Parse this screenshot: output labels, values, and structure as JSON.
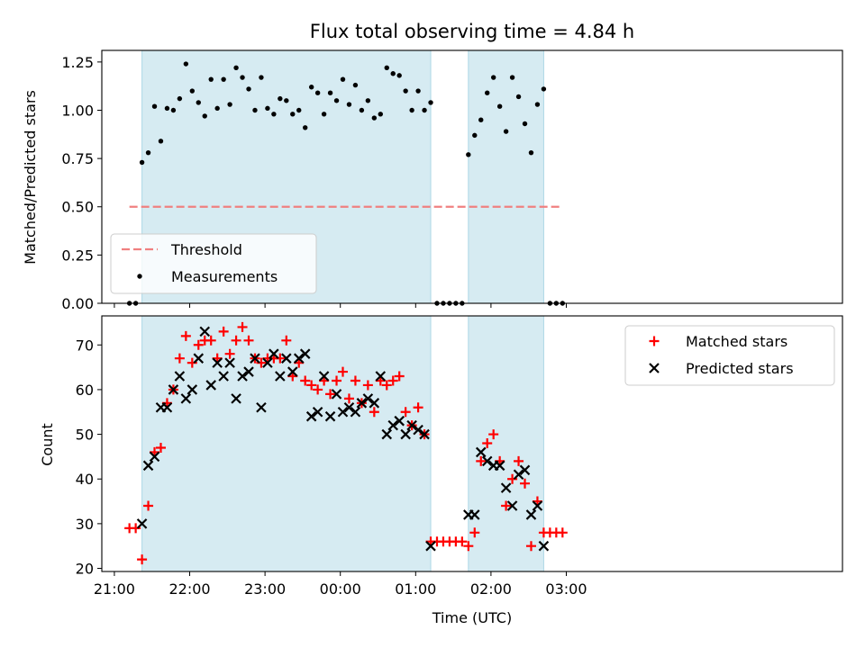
{
  "chart_data": [
    {
      "type": "scatter",
      "title": "Flux total observing time = 4.84 h",
      "xlabel": "",
      "ylabel": "Matched/Predicted stars",
      "ylim": [
        0,
        1.31
      ],
      "yticks": [
        "0.00",
        "0.25",
        "0.50",
        "0.75",
        "1.00",
        "1.25"
      ],
      "grid": false,
      "legend_position": "lower-left",
      "shaded_intervals": [
        [
          "21:22",
          "01:12"
        ],
        [
          "01:42",
          "02:42"
        ]
      ],
      "threshold": {
        "name": "Threshold",
        "value": 0.5,
        "x_range": [
          "21:12",
          "02:57"
        ],
        "color": "#f08080"
      },
      "series": [
        {
          "name": "Measurements",
          "marker": "dot",
          "color": "#000000",
          "points": [
            [
              "21:12",
              0.0
            ],
            [
              "21:17",
              0.0
            ],
            [
              "21:22",
              0.73
            ],
            [
              "21:27",
              0.78
            ],
            [
              "21:32",
              1.02
            ],
            [
              "21:37",
              0.84
            ],
            [
              "21:42",
              1.01
            ],
            [
              "21:47",
              1.0
            ],
            [
              "21:52",
              1.06
            ],
            [
              "21:57",
              1.24
            ],
            [
              "22:02",
              1.1
            ],
            [
              "22:07",
              1.04
            ],
            [
              "22:12",
              0.97
            ],
            [
              "22:17",
              1.16
            ],
            [
              "22:22",
              1.01
            ],
            [
              "22:27",
              1.16
            ],
            [
              "22:32",
              1.03
            ],
            [
              "22:37",
              1.22
            ],
            [
              "22:42",
              1.17
            ],
            [
              "22:47",
              1.11
            ],
            [
              "22:52",
              1.0
            ],
            [
              "22:57",
              1.17
            ],
            [
              "23:02",
              1.01
            ],
            [
              "23:07",
              0.98
            ],
            [
              "23:12",
              1.06
            ],
            [
              "23:17",
              1.05
            ],
            [
              "23:22",
              0.98
            ],
            [
              "23:27",
              1.0
            ],
            [
              "23:32",
              0.91
            ],
            [
              "23:37",
              1.12
            ],
            [
              "23:42",
              1.09
            ],
            [
              "23:47",
              0.98
            ],
            [
              "23:52",
              1.09
            ],
            [
              "23:57",
              1.05
            ],
            [
              "00:02",
              1.16
            ],
            [
              "00:07",
              1.03
            ],
            [
              "00:12",
              1.13
            ],
            [
              "00:17",
              1.0
            ],
            [
              "00:22",
              1.05
            ],
            [
              "00:27",
              0.96
            ],
            [
              "00:32",
              0.98
            ],
            [
              "00:37",
              1.22
            ],
            [
              "00:42",
              1.19
            ],
            [
              "00:47",
              1.18
            ],
            [
              "00:52",
              1.1
            ],
            [
              "00:57",
              1.0
            ],
            [
              "01:02",
              1.1
            ],
            [
              "01:07",
              1.0
            ],
            [
              "01:12",
              1.04
            ],
            [
              "01:17",
              0.0
            ],
            [
              "01:22",
              0.0
            ],
            [
              "01:27",
              0.0
            ],
            [
              "01:32",
              0.0
            ],
            [
              "01:37",
              0.0
            ],
            [
              "01:42",
              0.77
            ],
            [
              "01:47",
              0.87
            ],
            [
              "01:52",
              0.95
            ],
            [
              "01:57",
              1.09
            ],
            [
              "02:02",
              1.17
            ],
            [
              "02:07",
              1.02
            ],
            [
              "02:12",
              0.89
            ],
            [
              "02:17",
              1.17
            ],
            [
              "02:22",
              1.07
            ],
            [
              "02:27",
              0.93
            ],
            [
              "02:32",
              0.78
            ],
            [
              "02:37",
              1.03
            ],
            [
              "02:42",
              1.11
            ],
            [
              "02:47",
              0.0
            ],
            [
              "02:52",
              0.0
            ],
            [
              "02:57",
              0.0
            ]
          ]
        }
      ]
    },
    {
      "type": "scatter",
      "title": "",
      "xlabel": "Time (UTC)",
      "ylabel": "Count",
      "ylim": [
        19.3,
        76.5
      ],
      "yticks": [
        "20",
        "30",
        "40",
        "50",
        "60",
        "70"
      ],
      "xticks": [
        "21:00",
        "22:00",
        "23:00",
        "00:00",
        "01:00",
        "02:00",
        "03:00"
      ],
      "grid": false,
      "legend_position": "upper-right",
      "shaded_intervals": [
        [
          "21:22",
          "01:12"
        ],
        [
          "01:42",
          "02:42"
        ]
      ],
      "series": [
        {
          "name": "Matched stars",
          "marker": "plus",
          "color": "#ff0000",
          "points": [
            [
              "21:12",
              29
            ],
            [
              "21:17",
              29
            ],
            [
              "21:22",
              22
            ],
            [
              "21:27",
              34
            ],
            [
              "21:32",
              46
            ],
            [
              "21:37",
              47
            ],
            [
              "21:42",
              57
            ],
            [
              "21:47",
              60
            ],
            [
              "21:52",
              67
            ],
            [
              "21:57",
              72
            ],
            [
              "22:02",
              66
            ],
            [
              "22:07",
              70
            ],
            [
              "22:12",
              71
            ],
            [
              "22:17",
              71
            ],
            [
              "22:22",
              67
            ],
            [
              "22:27",
              73
            ],
            [
              "22:32",
              68
            ],
            [
              "22:37",
              71
            ],
            [
              "22:42",
              74
            ],
            [
              "22:47",
              71
            ],
            [
              "22:52",
              67
            ],
            [
              "22:57",
              66
            ],
            [
              "23:02",
              67
            ],
            [
              "23:07",
              67
            ],
            [
              "23:12",
              67
            ],
            [
              "23:17",
              71
            ],
            [
              "23:22",
              63
            ],
            [
              "23:27",
              66
            ],
            [
              "23:32",
              62
            ],
            [
              "23:37",
              61
            ],
            [
              "23:42",
              60
            ],
            [
              "23:47",
              62
            ],
            [
              "23:52",
              59
            ],
            [
              "23:57",
              62
            ],
            [
              "00:02",
              64
            ],
            [
              "00:07",
              58
            ],
            [
              "00:12",
              62
            ],
            [
              "00:17",
              57
            ],
            [
              "00:22",
              61
            ],
            [
              "00:27",
              55
            ],
            [
              "00:32",
              62
            ],
            [
              "00:37",
              61
            ],
            [
              "00:42",
              62
            ],
            [
              "00:47",
              63
            ],
            [
              "00:52",
              55
            ],
            [
              "00:57",
              52
            ],
            [
              "01:02",
              56
            ],
            [
              "01:07",
              50
            ],
            [
              "01:12",
              26
            ],
            [
              "01:17",
              26
            ],
            [
              "01:22",
              26
            ],
            [
              "01:27",
              26
            ],
            [
              "01:32",
              26
            ],
            [
              "01:37",
              26
            ],
            [
              "01:42",
              25
            ],
            [
              "01:47",
              28
            ],
            [
              "01:52",
              44
            ],
            [
              "01:57",
              48
            ],
            [
              "02:02",
              50
            ],
            [
              "02:07",
              44
            ],
            [
              "02:12",
              34
            ],
            [
              "02:17",
              40
            ],
            [
              "02:22",
              44
            ],
            [
              "02:27",
              39
            ],
            [
              "02:32",
              25
            ],
            [
              "02:37",
              35
            ],
            [
              "02:42",
              28
            ],
            [
              "02:47",
              28
            ],
            [
              "02:52",
              28
            ],
            [
              "02:57",
              28
            ]
          ]
        },
        {
          "name": "Predicted stars",
          "marker": "x",
          "color": "#000000",
          "points": [
            [
              "21:22",
              30
            ],
            [
              "21:27",
              43
            ],
            [
              "21:32",
              45
            ],
            [
              "21:37",
              56
            ],
            [
              "21:42",
              56
            ],
            [
              "21:47",
              60
            ],
            [
              "21:52",
              63
            ],
            [
              "21:57",
              58
            ],
            [
              "22:02",
              60
            ],
            [
              "22:07",
              67
            ],
            [
              "22:12",
              73
            ],
            [
              "22:17",
              61
            ],
            [
              "22:22",
              66
            ],
            [
              "22:27",
              63
            ],
            [
              "22:32",
              66
            ],
            [
              "22:37",
              58
            ],
            [
              "22:42",
              63
            ],
            [
              "22:47",
              64
            ],
            [
              "22:52",
              67
            ],
            [
              "22:57",
              56
            ],
            [
              "23:02",
              66
            ],
            [
              "23:07",
              68
            ],
            [
              "23:12",
              63
            ],
            [
              "23:17",
              67
            ],
            [
              "23:22",
              64
            ],
            [
              "23:27",
              67
            ],
            [
              "23:32",
              68
            ],
            [
              "23:37",
              54
            ],
            [
              "23:42",
              55
            ],
            [
              "23:47",
              63
            ],
            [
              "23:52",
              54
            ],
            [
              "23:57",
              59
            ],
            [
              "00:02",
              55
            ],
            [
              "00:07",
              56
            ],
            [
              "00:12",
              55
            ],
            [
              "00:17",
              57
            ],
            [
              "00:22",
              58
            ],
            [
              "00:27",
              57
            ],
            [
              "00:32",
              63
            ],
            [
              "00:37",
              50
            ],
            [
              "00:42",
              52
            ],
            [
              "00:47",
              53
            ],
            [
              "00:52",
              50
            ],
            [
              "00:57",
              52
            ],
            [
              "01:02",
              51
            ],
            [
              "01:07",
              50
            ],
            [
              "01:12",
              25
            ],
            [
              "01:42",
              32
            ],
            [
              "01:47",
              32
            ],
            [
              "01:52",
              46
            ],
            [
              "01:57",
              44
            ],
            [
              "02:02",
              43
            ],
            [
              "02:07",
              43
            ],
            [
              "02:12",
              38
            ],
            [
              "02:17",
              34
            ],
            [
              "02:22",
              41
            ],
            [
              "02:27",
              42
            ],
            [
              "02:32",
              32
            ],
            [
              "02:37",
              34
            ],
            [
              "02:42",
              25
            ]
          ]
        }
      ]
    }
  ]
}
